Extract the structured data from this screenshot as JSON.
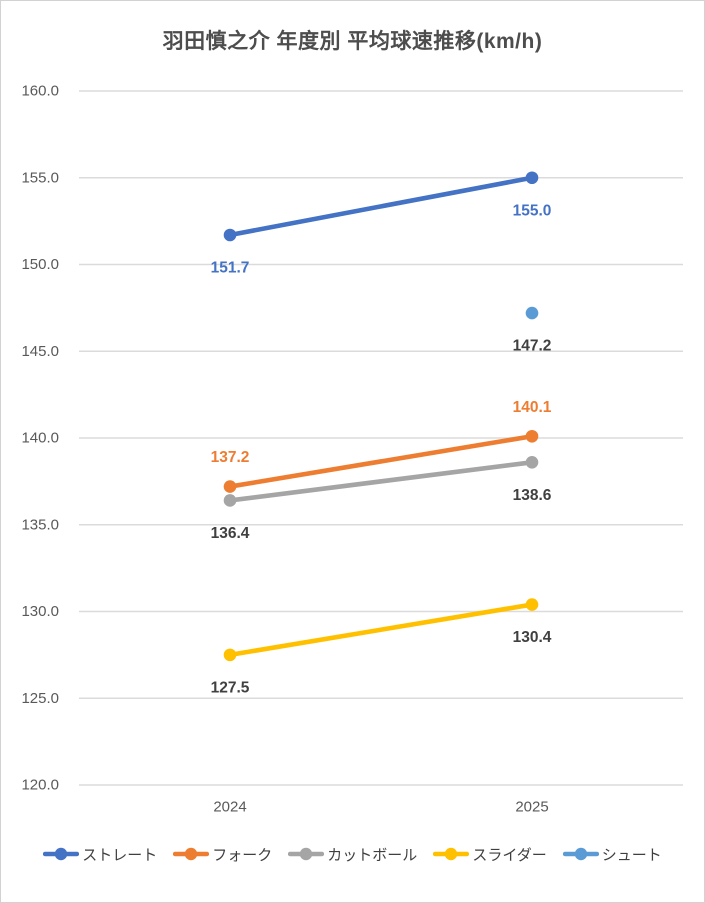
{
  "chart_data": {
    "type": "line",
    "title": "羽田慎之介 年度別 平均球速推移(km/h)",
    "xlabel": "",
    "ylabel": "",
    "categories": [
      "2024",
      "2025"
    ],
    "ylim": [
      120,
      160
    ],
    "ytick_step": 5,
    "yticks": [
      "160.0",
      "155.0",
      "150.0",
      "145.0",
      "140.0",
      "135.0",
      "130.0",
      "125.0",
      "120.0"
    ],
    "grid": true,
    "legend_position": "bottom",
    "series": [
      {
        "name": "ストレート",
        "color": "#4472C4",
        "values": [
          151.7,
          155.0
        ],
        "labels": [
          "151.7",
          "155.0"
        ],
        "label_color": "#4472C4",
        "label_side": "below"
      },
      {
        "name": "フォーク",
        "color": "#ED7D31",
        "values": [
          137.2,
          140.1
        ],
        "labels": [
          "137.2",
          "140.1"
        ],
        "label_color": "#ED7D31",
        "label_side": "above"
      },
      {
        "name": "カットボール",
        "color": "#A5A5A5",
        "values": [
          136.4,
          138.6
        ],
        "labels": [
          "136.4",
          "138.6"
        ],
        "label_color": "#404040",
        "label_side": "below"
      },
      {
        "name": "スライダー",
        "color": "#FFC000",
        "values": [
          127.5,
          130.4
        ],
        "labels": [
          "127.5",
          "130.4"
        ],
        "label_color": "#404040",
        "label_side": "below"
      },
      {
        "name": "シュート",
        "color": "#5B9BD5",
        "values": [
          null,
          147.2
        ],
        "labels": [
          "",
          "147.2"
        ],
        "label_color": "#404040",
        "label_side": "below"
      }
    ]
  },
  "colors": {
    "background": "#FFFFFF",
    "frame_border": "#D2D2D2",
    "gridline": "#DBDBDB",
    "axis_text": "#595959",
    "title_text": "#4D4D4D",
    "legend_text": "#3F3F3F",
    "dark_data_label": "#404040"
  }
}
